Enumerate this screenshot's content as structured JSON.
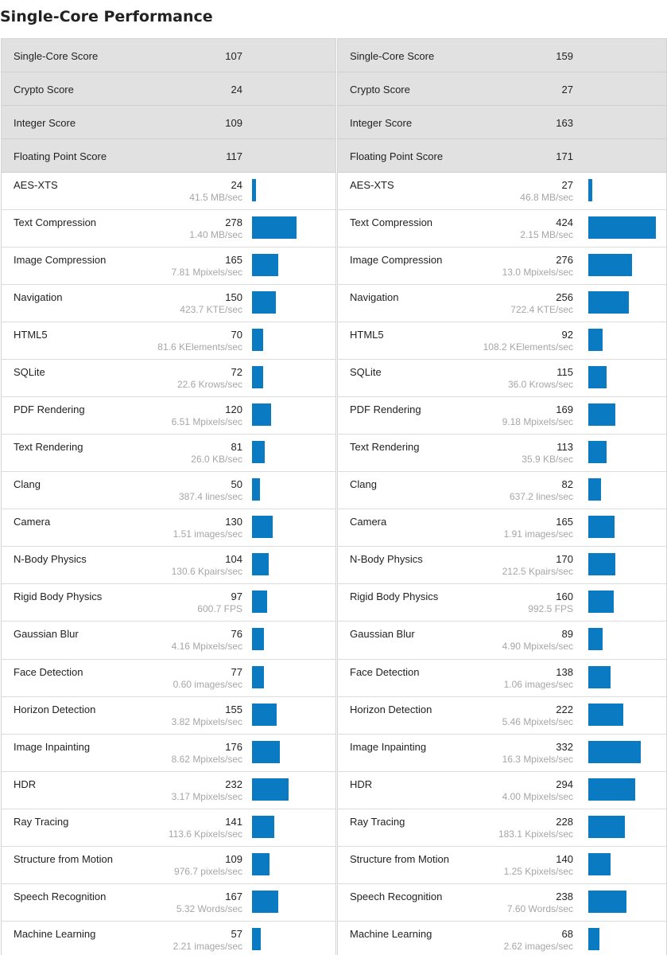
{
  "page": {
    "title": "Single-Core Performance"
  },
  "colors": {
    "bar": "#0a7bc2",
    "header_bg": "#e1e1e1",
    "sub_text": "#a6a6a6"
  },
  "bar_scale_max": 450,
  "panels": [
    {
      "summary": [
        {
          "label": "Single-Core Score",
          "value": "107"
        },
        {
          "label": "Crypto Score",
          "value": "24"
        },
        {
          "label": "Integer Score",
          "value": "109"
        },
        {
          "label": "Floating Point Score",
          "value": "117"
        }
      ],
      "benchmarks": [
        {
          "name": "AES-XTS",
          "score": 24,
          "rate": "41.5 MB/sec"
        },
        {
          "name": "Text Compression",
          "score": 278,
          "rate": "1.40 MB/sec"
        },
        {
          "name": "Image Compression",
          "score": 165,
          "rate": "7.81 Mpixels/sec"
        },
        {
          "name": "Navigation",
          "score": 150,
          "rate": "423.7 KTE/sec"
        },
        {
          "name": "HTML5",
          "score": 70,
          "rate": "81.6 KElements/sec"
        },
        {
          "name": "SQLite",
          "score": 72,
          "rate": "22.6 Krows/sec"
        },
        {
          "name": "PDF Rendering",
          "score": 120,
          "rate": "6.51 Mpixels/sec"
        },
        {
          "name": "Text Rendering",
          "score": 81,
          "rate": "26.0 KB/sec"
        },
        {
          "name": "Clang",
          "score": 50,
          "rate": "387.4 lines/sec"
        },
        {
          "name": "Camera",
          "score": 130,
          "rate": "1.51 images/sec"
        },
        {
          "name": "N-Body Physics",
          "score": 104,
          "rate": "130.6 Kpairs/sec"
        },
        {
          "name": "Rigid Body Physics",
          "score": 97,
          "rate": "600.7 FPS"
        },
        {
          "name": "Gaussian Blur",
          "score": 76,
          "rate": "4.16 Mpixels/sec"
        },
        {
          "name": "Face Detection",
          "score": 77,
          "rate": "0.60 images/sec"
        },
        {
          "name": "Horizon Detection",
          "score": 155,
          "rate": "3.82 Mpixels/sec"
        },
        {
          "name": "Image Inpainting",
          "score": 176,
          "rate": "8.62 Mpixels/sec"
        },
        {
          "name": "HDR",
          "score": 232,
          "rate": "3.17 Mpixels/sec"
        },
        {
          "name": "Ray Tracing",
          "score": 141,
          "rate": "113.6 Kpixels/sec"
        },
        {
          "name": "Structure from Motion",
          "score": 109,
          "rate": "976.7 pixels/sec"
        },
        {
          "name": "Speech Recognition",
          "score": 167,
          "rate": "5.32 Words/sec"
        },
        {
          "name": "Machine Learning",
          "score": 57,
          "rate": "2.21 images/sec"
        }
      ]
    },
    {
      "summary": [
        {
          "label": "Single-Core Score",
          "value": "159"
        },
        {
          "label": "Crypto Score",
          "value": "27"
        },
        {
          "label": "Integer Score",
          "value": "163"
        },
        {
          "label": "Floating Point Score",
          "value": "171"
        }
      ],
      "benchmarks": [
        {
          "name": "AES-XTS",
          "score": 27,
          "rate": "46.8 MB/sec"
        },
        {
          "name": "Text Compression",
          "score": 424,
          "rate": "2.15 MB/sec"
        },
        {
          "name": "Image Compression",
          "score": 276,
          "rate": "13.0 Mpixels/sec"
        },
        {
          "name": "Navigation",
          "score": 256,
          "rate": "722.4 KTE/sec"
        },
        {
          "name": "HTML5",
          "score": 92,
          "rate": "108.2 KElements/sec"
        },
        {
          "name": "SQLite",
          "score": 115,
          "rate": "36.0 Krows/sec"
        },
        {
          "name": "PDF Rendering",
          "score": 169,
          "rate": "9.18 Mpixels/sec"
        },
        {
          "name": "Text Rendering",
          "score": 113,
          "rate": "35.9 KB/sec"
        },
        {
          "name": "Clang",
          "score": 82,
          "rate": "637.2 lines/sec"
        },
        {
          "name": "Camera",
          "score": 165,
          "rate": "1.91 images/sec"
        },
        {
          "name": "N-Body Physics",
          "score": 170,
          "rate": "212.5 Kpairs/sec"
        },
        {
          "name": "Rigid Body Physics",
          "score": 160,
          "rate": "992.5 FPS"
        },
        {
          "name": "Gaussian Blur",
          "score": 89,
          "rate": "4.90 Mpixels/sec"
        },
        {
          "name": "Face Detection",
          "score": 138,
          "rate": "1.06 images/sec"
        },
        {
          "name": "Horizon Detection",
          "score": 222,
          "rate": "5.46 Mpixels/sec"
        },
        {
          "name": "Image Inpainting",
          "score": 332,
          "rate": "16.3 Mpixels/sec"
        },
        {
          "name": "HDR",
          "score": 294,
          "rate": "4.00 Mpixels/sec"
        },
        {
          "name": "Ray Tracing",
          "score": 228,
          "rate": "183.1 Kpixels/sec"
        },
        {
          "name": "Structure from Motion",
          "score": 140,
          "rate": "1.25 Kpixels/sec"
        },
        {
          "name": "Speech Recognition",
          "score": 238,
          "rate": "7.60 Words/sec"
        },
        {
          "name": "Machine Learning",
          "score": 68,
          "rate": "2.62 images/sec"
        }
      ]
    }
  ]
}
